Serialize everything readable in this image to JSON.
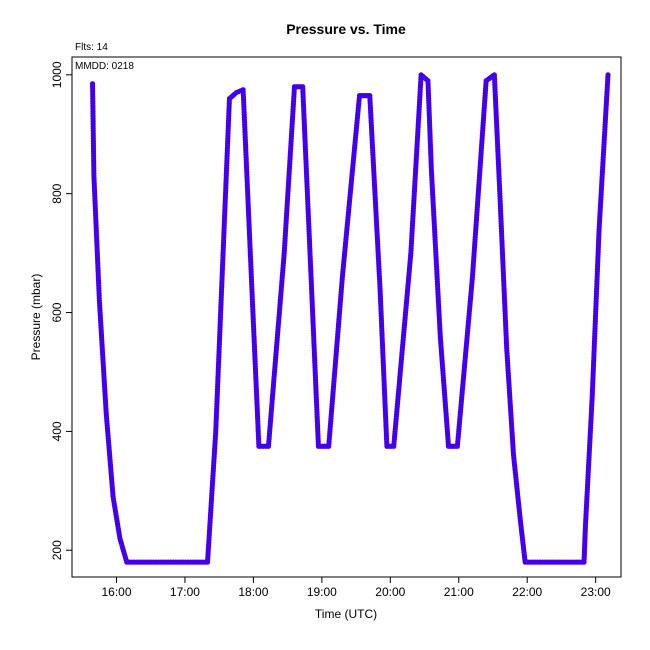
{
  "chart_data": {
    "type": "scatter",
    "title": "Pressure  vs. Time",
    "annotations": [
      "Flts: 14",
      "MMDD: 0218"
    ],
    "xlabel": "Time (UTC)",
    "ylabel": "Pressure (mbar)",
    "xlim": [
      15.35,
      23.37
    ],
    "ylim": [
      1030,
      155
    ],
    "y_inverted": true,
    "xticks": [
      16,
      17,
      18,
      19,
      20,
      21,
      22,
      23
    ],
    "xtick_labels": [
      "16:00",
      "17:00",
      "18:00",
      "19:00",
      "20:00",
      "21:00",
      "22:00",
      "23:00"
    ],
    "yticks": [
      200,
      400,
      600,
      800,
      1000
    ],
    "ytick_labels": [
      "200",
      "400",
      "600",
      "800",
      "1000"
    ],
    "grid": false,
    "series": [
      {
        "color": "#4400ee",
        "path_points": [
          [
            15.65,
            985
          ],
          [
            15.67,
            830
          ],
          [
            15.75,
            620
          ],
          [
            15.85,
            430
          ],
          [
            15.95,
            290
          ],
          [
            16.05,
            220
          ],
          [
            16.15,
            180
          ],
          [
            17.33,
            180
          ],
          [
            17.45,
            400
          ],
          [
            17.55,
            680
          ],
          [
            17.65,
            960
          ],
          [
            17.75,
            970
          ],
          [
            17.85,
            975
          ],
          [
            17.97,
            660
          ],
          [
            18.08,
            375
          ],
          [
            18.22,
            375
          ],
          [
            18.45,
            700
          ],
          [
            18.6,
            980
          ],
          [
            18.72,
            980
          ],
          [
            18.85,
            640
          ],
          [
            18.95,
            375
          ],
          [
            19.1,
            375
          ],
          [
            19.3,
            660
          ],
          [
            19.55,
            965
          ],
          [
            19.7,
            965
          ],
          [
            19.85,
            640
          ],
          [
            19.95,
            375
          ],
          [
            20.05,
            375
          ],
          [
            20.3,
            700
          ],
          [
            20.45,
            1000
          ],
          [
            20.55,
            990
          ],
          [
            20.6,
            840
          ],
          [
            20.73,
            560
          ],
          [
            20.85,
            375
          ],
          [
            20.98,
            375
          ],
          [
            21.2,
            660
          ],
          [
            21.4,
            990
          ],
          [
            21.52,
            1000
          ],
          [
            21.6,
            800
          ],
          [
            21.7,
            540
          ],
          [
            21.8,
            360
          ],
          [
            21.9,
            250
          ],
          [
            21.97,
            180
          ],
          [
            22.83,
            180
          ],
          [
            22.85,
            240
          ],
          [
            22.95,
            460
          ],
          [
            23.05,
            740
          ],
          [
            23.18,
            1000
          ]
        ]
      }
    ]
  }
}
